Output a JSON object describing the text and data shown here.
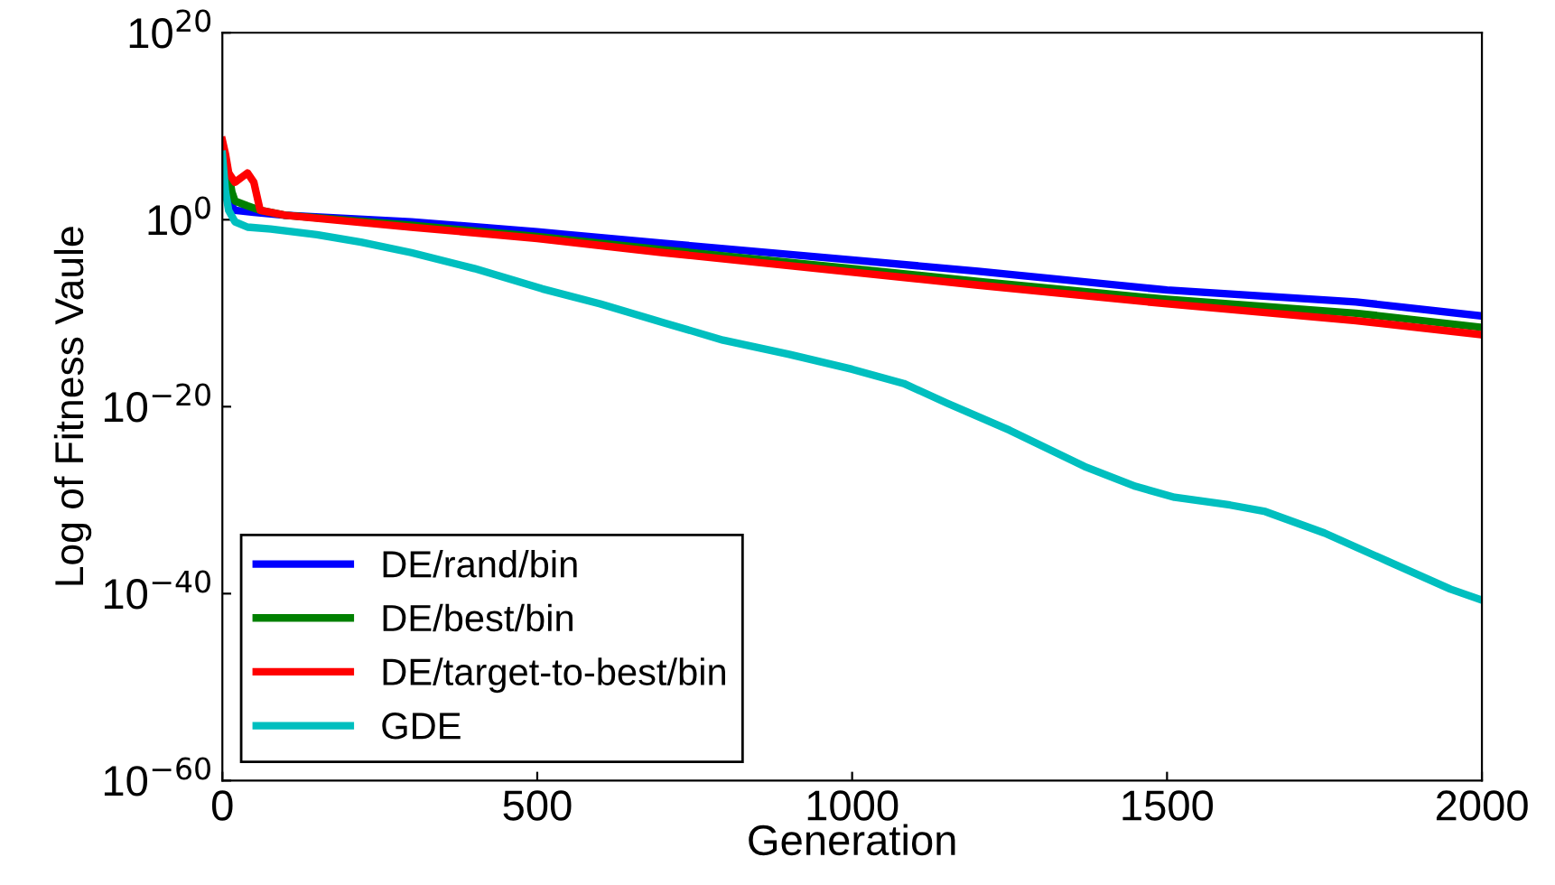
{
  "chart_data": {
    "type": "line",
    "xlabel": "Generation",
    "ylabel": "Log of Fitness Vaule",
    "log": "y",
    "xlim": [
      0,
      2000
    ],
    "xticks": [
      0,
      500,
      1000,
      1500,
      2000
    ],
    "ylim": [
      1e-60,
      1e+20
    ],
    "yticks": [
      {
        "value": 1e+20,
        "label": "10$^{20}$"
      },
      {
        "value": 1,
        "label": "10$^{0}$"
      },
      {
        "value": 1e-20,
        "label": "10$^{−20}$"
      },
      {
        "value": 1e-40,
        "label": "10$^{−40}$"
      },
      {
        "value": 1e-60,
        "label": "10$^{−60}$"
      }
    ],
    "grid": false,
    "legend": "bottom left",
    "line_style": "solid",
    "series": [
      {
        "name": "DE/rand/bin",
        "color": "#0000ff",
        "x": [
          10,
          20,
          50,
          100,
          300,
          500,
          700,
          1000,
          1200,
          1500,
          1800,
          2000
        ],
        "values": [
          100.0,
          10.0,
          6,
          3,
          0.6,
          0.05,
          0.003,
          5e-05,
          3e-06,
          3e-08,
          1.6e-09,
          5e-11
        ]
      },
      {
        "name": "DE/best/bin",
        "color": "#008000",
        "x": [
          0,
          10,
          15,
          20,
          40,
          60,
          100,
          300,
          500,
          700,
          1000,
          1200,
          1500,
          1800,
          2000
        ],
        "values": [
          1000000.0,
          100000.0,
          1000.0,
          100.0,
          30.0,
          10.0,
          3,
          0.25,
          0.016,
          0.0006,
          6e-06,
          2.5e-07,
          3e-09,
          1e-10,
          3e-12
        ]
      },
      {
        "name": "DE/target-to-best/bin",
        "color": "#ff0000",
        "x": [
          0,
          5,
          10,
          20,
          40,
          50,
          60,
          100,
          300,
          500,
          700,
          1000,
          1200,
          1500,
          1800,
          2000
        ],
        "values": [
          300000000.0,
          10000000.0,
          100000.0,
          10000.0,
          100000.0,
          10000.0,
          10.0,
          3,
          0.16,
          0.01,
          0.0003,
          2.5e-06,
          1e-07,
          1e-09,
          1.6e-11,
          5e-13
        ]
      },
      {
        "name": "GDE",
        "color": "#00bfbf",
        "x": [
          0,
          5,
          10,
          20,
          40,
          77,
          150,
          220,
          300,
          400,
          508,
          600,
          700,
          795,
          900,
          1000,
          1082,
          1150,
          1250,
          1369,
          1450,
          1512,
          1600,
          1656,
          1750,
          1850,
          1950,
          2000
        ],
        "values": [
          10000000.0,
          1000.0,
          10.0,
          0.6,
          0.16,
          0.1,
          0.025,
          0.004,
          0.0003,
          6e-06,
          4e-08,
          1e-09,
          1e-11,
          1.3e-13,
          4e-15,
          1e-16,
          3e-18,
          2.5e-20,
          3e-23,
          4e-27,
          3e-29,
          2e-30,
          3e-31,
          6e-32,
          3e-34,
          3e-37,
          3e-40,
          2e-41
        ]
      }
    ]
  }
}
